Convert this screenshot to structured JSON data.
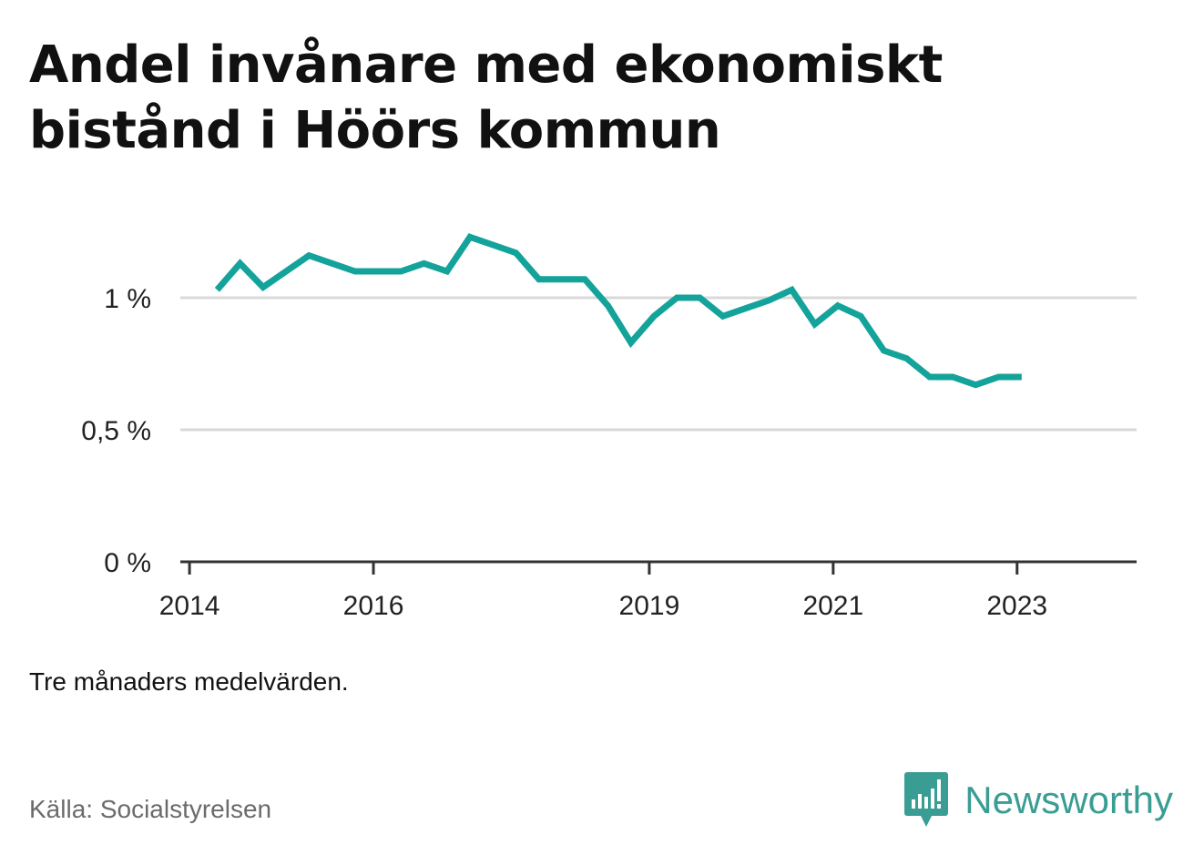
{
  "title": "Andel invånare med ekonomiskt bistånd i Höörs kommun",
  "note": "Tre månaders medelvärden.",
  "source": "Källa: Socialstyrelsen",
  "brand": {
    "name": "Newsworthy",
    "icon": "chart-speech-bubble-icon",
    "color": "#3a9d94"
  },
  "colors": {
    "line": "#14a39a",
    "grid": "#d9d9d9",
    "axis": "#333333"
  },
  "chart_data": {
    "type": "line",
    "title": "Andel invånare med ekonomiskt bistånd i Höörs kommun",
    "xlabel": "",
    "ylabel": "",
    "ylim": [
      0,
      1.3
    ],
    "yticks": [
      {
        "value": 0,
        "label": "0 %"
      },
      {
        "value": 0.5,
        "label": "0,5 %"
      },
      {
        "value": 1,
        "label": "1 %"
      }
    ],
    "xticks": [
      {
        "value": 2014.0,
        "label": "2014"
      },
      {
        "value": 2016.0,
        "label": "2016"
      },
      {
        "value": 2019.0,
        "label": "2019"
      },
      {
        "value": 2021.0,
        "label": "2021"
      },
      {
        "value": 2023.0,
        "label": "2023"
      }
    ],
    "xlim": [
      2013.9,
      2024.3
    ],
    "grid": true,
    "series": [
      {
        "values": [
          [
            2014.3,
            1.03
          ],
          [
            2014.55,
            1.13
          ],
          [
            2014.8,
            1.04
          ],
          [
            2015.05,
            1.1
          ],
          [
            2015.3,
            1.16
          ],
          [
            2015.55,
            1.13
          ],
          [
            2015.8,
            1.1
          ],
          [
            2016.05,
            1.1
          ],
          [
            2016.3,
            1.1
          ],
          [
            2016.55,
            1.13
          ],
          [
            2016.8,
            1.1
          ],
          [
            2017.05,
            1.23
          ],
          [
            2017.3,
            1.2
          ],
          [
            2017.55,
            1.17
          ],
          [
            2017.8,
            1.07
          ],
          [
            2018.05,
            1.07
          ],
          [
            2018.3,
            1.07
          ],
          [
            2018.55,
            0.97
          ],
          [
            2018.8,
            0.83
          ],
          [
            2019.05,
            0.93
          ],
          [
            2019.3,
            1.0
          ],
          [
            2019.55,
            1.0
          ],
          [
            2019.8,
            0.93
          ],
          [
            2020.05,
            0.96
          ],
          [
            2020.3,
            0.99
          ],
          [
            2020.55,
            1.03
          ],
          [
            2020.8,
            0.9
          ],
          [
            2021.05,
            0.97
          ],
          [
            2021.3,
            0.93
          ],
          [
            2021.55,
            0.8
          ],
          [
            2021.8,
            0.77
          ],
          [
            2022.05,
            0.7
          ],
          [
            2022.3,
            0.7
          ],
          [
            2022.55,
            0.67
          ],
          [
            2022.8,
            0.7
          ],
          [
            2023.05,
            0.7
          ]
        ]
      }
    ]
  }
}
